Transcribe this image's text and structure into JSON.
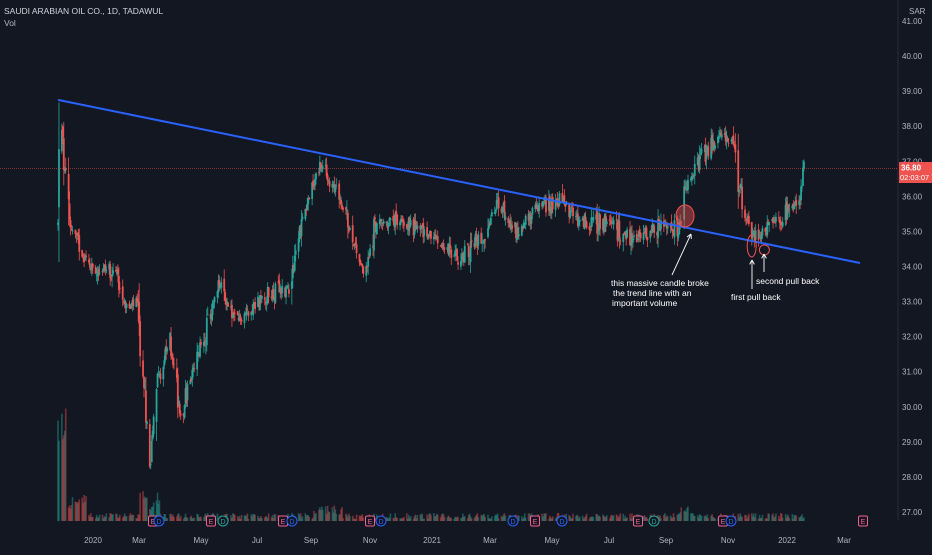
{
  "header": {
    "symbol_line": "SAUDI ARABIAN OIL CO., 1D, TADAWUL",
    "volume_label": "Vol"
  },
  "price_axis": {
    "currency": "SAR",
    "ticks": [
      "41.00",
      "40.00",
      "39.00",
      "38.00",
      "37.00",
      "36.00",
      "35.00",
      "34.00",
      "33.00",
      "32.00",
      "31.00",
      "30.00",
      "29.00",
      "28.00",
      "27.00"
    ],
    "last_price": "36.80",
    "countdown": "02:03:07"
  },
  "time_axis": {
    "ticks": [
      "2020",
      "Mar",
      "May",
      "Jul",
      "Sep",
      "Nov",
      "2021",
      "Mar",
      "May",
      "Jul",
      "Sep",
      "Nov",
      "2022",
      "Mar"
    ]
  },
  "annotations": {
    "candle_note": [
      "this massive candle broke",
      "the trend line with an",
      "important volume"
    ],
    "pullback_1": "first pull back",
    "pullback_2": "second pull back"
  },
  "event_markers": [
    "E",
    "D",
    "E",
    "D",
    "E",
    "D",
    "E",
    "D",
    "D",
    "E",
    "D",
    "E",
    "D",
    "E",
    "D",
    "E"
  ],
  "colors": {
    "background": "#131722",
    "up": "#26a69a",
    "down": "#ef5350",
    "trendline": "#2962ff",
    "annotation": "#ffffff",
    "axis_text": "#b2b5be",
    "last_price_bg": "#ef5350"
  },
  "chart_data": {
    "type": "candlestick",
    "title": "SAUDI ARABIAN OIL CO., 1D, TADAWUL",
    "currency": "SAR",
    "ylim": [
      26.6,
      41.4
    ],
    "x_range": [
      "2019-12-11",
      "2022-03-20"
    ],
    "approx_close_path": [
      {
        "date": "2019-12-11",
        "close": 35.2
      },
      {
        "date": "2019-12-12",
        "close": 38.7
      },
      {
        "date": "2019-12-22",
        "close": 35.3
      },
      {
        "date": "2020-01-12",
        "close": 34.0
      },
      {
        "date": "2020-02-08",
        "close": 33.9
      },
      {
        "date": "2020-02-22",
        "close": 32.7
      },
      {
        "date": "2020-03-01",
        "close": 33.0
      },
      {
        "date": "2020-03-16",
        "close": 28.5
      },
      {
        "date": "2020-03-22",
        "close": 30.6
      },
      {
        "date": "2020-04-05",
        "close": 31.9
      },
      {
        "date": "2020-04-16",
        "close": 29.8
      },
      {
        "date": "2020-05-08",
        "close": 31.8
      },
      {
        "date": "2020-05-26",
        "close": 33.5
      },
      {
        "date": "2020-06-12",
        "close": 32.4
      },
      {
        "date": "2020-07-09",
        "close": 33.1
      },
      {
        "date": "2020-08-06",
        "close": 33.4
      },
      {
        "date": "2020-08-20",
        "close": 35.4
      },
      {
        "date": "2020-09-08",
        "close": 36.9
      },
      {
        "date": "2020-09-28",
        "close": 35.9
      },
      {
        "date": "2020-10-14",
        "close": 34.6
      },
      {
        "date": "2020-10-24",
        "close": 33.7
      },
      {
        "date": "2020-11-03",
        "close": 35.2
      },
      {
        "date": "2020-12-03",
        "close": 35.3
      },
      {
        "date": "2020-12-30",
        "close": 34.9
      },
      {
        "date": "2021-01-30",
        "close": 34.2
      },
      {
        "date": "2021-02-26",
        "close": 35.0
      },
      {
        "date": "2021-03-10",
        "close": 35.8
      },
      {
        "date": "2021-03-31",
        "close": 35.0
      },
      {
        "date": "2021-04-21",
        "close": 35.7
      },
      {
        "date": "2021-05-15",
        "close": 35.9
      },
      {
        "date": "2021-06-01",
        "close": 35.3
      },
      {
        "date": "2021-07-01",
        "close": 35.2
      },
      {
        "date": "2021-07-28",
        "close": 34.8
      },
      {
        "date": "2021-08-27",
        "close": 35.2
      },
      {
        "date": "2021-09-15",
        "close": 35.0
      },
      {
        "date": "2021-09-20",
        "close": 36.2
      },
      {
        "date": "2021-10-06",
        "close": 37.1
      },
      {
        "date": "2021-10-31",
        "close": 37.8
      },
      {
        "date": "2021-11-10",
        "close": 37.2
      },
      {
        "date": "2021-11-21",
        "close": 35.5
      },
      {
        "date": "2021-11-29",
        "close": 34.9
      },
      {
        "date": "2021-12-12",
        "close": 35.0
      },
      {
        "date": "2022-01-03",
        "close": 35.5
      },
      {
        "date": "2022-01-15",
        "close": 35.7
      },
      {
        "date": "2022-01-21",
        "close": 36.8
      }
    ],
    "trendline": [
      {
        "date": "2019-12-11",
        "price": 38.75
      },
      {
        "date": "2022-03-20",
        "price": 34.1
      }
    ],
    "annotated_points": [
      {
        "date": "2021-09-22",
        "price": 35.5
      },
      {
        "date": "2021-12-01",
        "price": 34.7
      },
      {
        "date": "2021-12-10",
        "price": 34.7
      }
    ]
  }
}
